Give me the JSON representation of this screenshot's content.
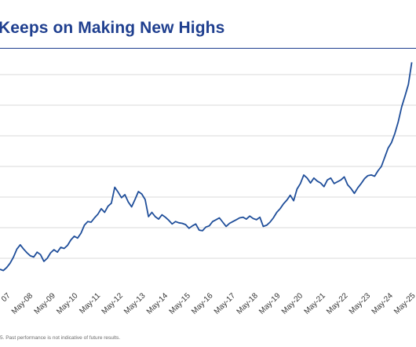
{
  "chart_data": {
    "type": "line",
    "title": "Keeps on Making New Highs",
    "xlabel": "",
    "ylabel": "",
    "x_tick_labels": [
      "07",
      "May-08",
      "May-09",
      "May-10",
      "May-11",
      "May-12",
      "May-13",
      "May-14",
      "May-15",
      "May-16",
      "May-17",
      "May-18",
      "May-19",
      "May-20",
      "May-21",
      "May-22",
      "May-23",
      "May-24",
      "May-25"
    ],
    "grid": true,
    "legend": "none",
    "series_color": "#1f4e9a",
    "series": [
      {
        "x": [
          2007.0,
          2007.15,
          2007.3,
          2007.45,
          2007.6,
          2007.75,
          2007.9,
          2008.05,
          2008.2,
          2008.35,
          2008.5,
          2008.65,
          2008.8,
          2008.95,
          2009.1,
          2009.25,
          2009.4,
          2009.55,
          2009.7,
          2009.85,
          2010.0,
          2010.15,
          2010.3,
          2010.45,
          2010.6,
          2010.75,
          2010.9,
          2011.05,
          2011.2,
          2011.35,
          2011.5,
          2011.65,
          2011.8,
          2011.95,
          2012.1,
          2012.25,
          2012.4,
          2012.55,
          2012.7,
          2012.85,
          2013.0,
          2013.15,
          2013.3,
          2013.45,
          2013.6,
          2013.75,
          2013.9,
          2014.05,
          2014.2,
          2014.35,
          2014.5,
          2014.65,
          2014.8,
          2014.95,
          2015.1,
          2015.25,
          2015.4,
          2015.55,
          2015.7,
          2015.85,
          2016.0,
          2016.15,
          2016.3,
          2016.45,
          2016.6,
          2016.75,
          2016.9,
          2017.05,
          2017.2,
          2017.35,
          2017.5,
          2017.65,
          2017.8,
          2017.95,
          2018.1,
          2018.25,
          2018.4,
          2018.55,
          2018.7,
          2018.85,
          2019.0,
          2019.15,
          2019.3,
          2019.45,
          2019.6,
          2019.75,
          2019.9,
          2020.05,
          2020.2,
          2020.35,
          2020.5,
          2020.65,
          2020.8,
          2020.95,
          2021.1,
          2021.25,
          2021.4,
          2021.55,
          2021.7,
          2021.85,
          2022.0,
          2022.15,
          2022.3,
          2022.45,
          2022.6,
          2022.75,
          2022.9,
          2023.05,
          2023.2,
          2023.35,
          2023.5,
          2023.65,
          2023.8,
          2023.95,
          2024.1,
          2024.25,
          2024.4,
          2024.55,
          2024.7,
          2024.85,
          2025.0,
          2025.15,
          2025.3
        ],
        "y": [
          13.2,
          13.0,
          13.5,
          14.2,
          15.2,
          16.5,
          17.2,
          16.5,
          15.9,
          15.4,
          15.2,
          16.0,
          15.6,
          14.5,
          15.0,
          15.9,
          16.4,
          16.0,
          16.8,
          16.6,
          17.1,
          18.0,
          18.6,
          18.3,
          19.1,
          20.4,
          21.0,
          20.9,
          21.6,
          22.2,
          23.1,
          22.5,
          23.5,
          24.0,
          26.6,
          25.8,
          24.9,
          25.4,
          24.2,
          23.4,
          24.6,
          25.9,
          25.5,
          24.6,
          21.8,
          22.5,
          21.8,
          21.4,
          22.1,
          21.7,
          21.2,
          20.6,
          21.0,
          20.8,
          20.7,
          20.5,
          19.9,
          20.3,
          20.6,
          19.6,
          19.5,
          20.1,
          20.3,
          21.0,
          21.3,
          21.6,
          20.9,
          20.2,
          20.7,
          21.0,
          21.3,
          21.6,
          21.7,
          21.4,
          21.9,
          21.5,
          21.3,
          21.7,
          20.2,
          20.4,
          20.9,
          21.6,
          22.5,
          23.1,
          23.9,
          24.5,
          25.3,
          24.4,
          26.3,
          27.2,
          28.6,
          28.1,
          27.3,
          28.1,
          27.6,
          27.3,
          26.7,
          27.8,
          28.1,
          27.2,
          27.5,
          27.8,
          28.3,
          27.0,
          26.4,
          25.6,
          26.5,
          27.2,
          28.0,
          28.5,
          28.6,
          28.4,
          29.3,
          30.0,
          31.5,
          33.0,
          33.9,
          35.4,
          37.3,
          39.7,
          41.5,
          43.4,
          47.0
        ]
      }
    ]
  },
  "footnote": "5. Past performance is not indicative of future results."
}
